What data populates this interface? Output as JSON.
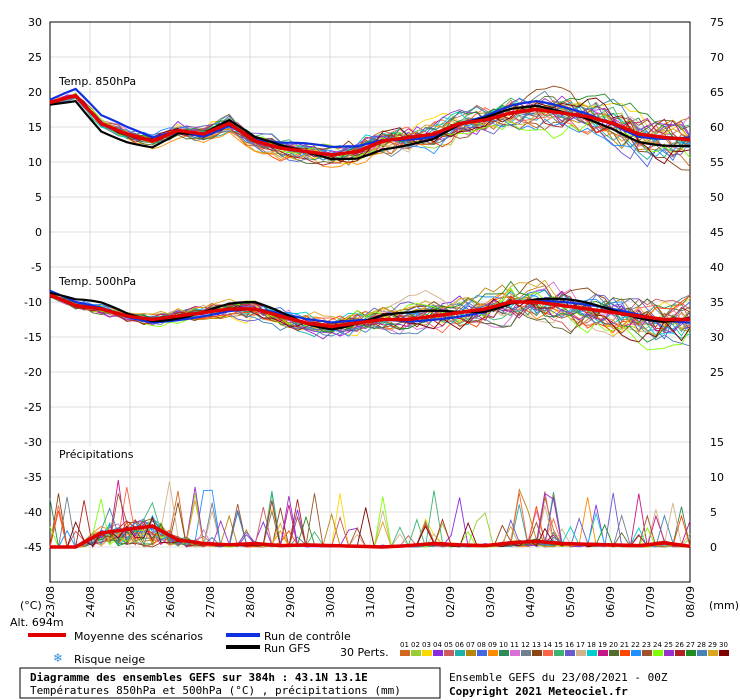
{
  "chart_data": {
    "type": "line",
    "left_axis_unit": "(°C)",
    "right_axis_unit": "(mm)",
    "left_ticks": [
      30,
      25,
      20,
      15,
      10,
      5,
      0,
      -5,
      -10,
      -15,
      -20,
      -25,
      -30,
      -35,
      -40,
      -45
    ],
    "right_ticks_top": [
      75,
      70,
      65,
      60,
      55,
      50
    ],
    "right_ticks_mid": [
      45,
      40,
      35,
      30,
      25
    ],
    "right_ticks_bottom": [
      15,
      10,
      5,
      0
    ],
    "x_labels": [
      "23/08",
      "24/08",
      "25/08",
      "26/08",
      "27/08",
      "28/08",
      "29/08",
      "30/08",
      "31/08",
      "01/09",
      "02/09",
      "03/09",
      "04/09",
      "05/09",
      "06/09",
      "07/09",
      "08/09"
    ],
    "panels": [
      {
        "label": "Temp. 850hPa",
        "ylim": [
          0,
          30
        ]
      },
      {
        "label": "Temp. 500hPa",
        "ylim": [
          -30,
          0
        ]
      },
      {
        "label": "Précipitations",
        "ylim_mm": [
          0,
          15
        ]
      }
    ],
    "grid": true,
    "mean_850": [
      18.5,
      19.5,
      15.5,
      14,
      13,
      14.5,
      14,
      15.5,
      13,
      12,
      11.5,
      11,
      11.5,
      13,
      13.5,
      14,
      15.5,
      16,
      17,
      17.5,
      17,
      16.5,
      15.5,
      14,
      13.5,
      13.2
    ],
    "mean_500": [
      -9,
      -10.5,
      -11,
      -12,
      -12.5,
      -12,
      -11.5,
      -11,
      -11,
      -12,
      -13,
      -13.5,
      -13,
      -12.5,
      -12.5,
      -12,
      -11.5,
      -11,
      -10,
      -10,
      -10.5,
      -11,
      -11.5,
      -12,
      -12.5,
      -12.5
    ],
    "mean_precip": [
      0,
      0,
      2,
      2.5,
      3,
      1,
      0.5,
      0.3,
      0.5,
      0.2,
      0.3,
      0.2,
      0.1,
      0,
      0.2,
      0.5,
      0.3,
      0.2,
      0.6,
      0.8,
      0.5,
      0.4,
      0.3,
      0.2,
      0.6,
      0.1
    ]
  },
  "left_axis_unit_label": "(°C)",
  "right_axis_unit_label": "(mm)",
  "altitude": "Alt. 694m",
  "legend": {
    "mean": "Moyenne des scénarios",
    "control": "Run de contrôle",
    "gfs": "Run GFS",
    "snow": "Risque neige",
    "perts": "30 Perts."
  },
  "pert_numbers": [
    "01",
    "02",
    "03",
    "04",
    "05",
    "06",
    "07",
    "08",
    "09",
    "10",
    "11",
    "12",
    "13",
    "14",
    "15",
    "16",
    "17",
    "18",
    "19",
    "20",
    "21",
    "22",
    "23",
    "24",
    "25",
    "26",
    "27",
    "28",
    "29",
    "30"
  ],
  "pert_colors": [
    "#d2691e",
    "#9acd32",
    "#ffd700",
    "#8a2be2",
    "#cd5c5c",
    "#20b2aa",
    "#b8860b",
    "#4169e1",
    "#ff8c00",
    "#2e8b57",
    "#da70d6",
    "#708090",
    "#8b4513",
    "#ff6347",
    "#3cb371",
    "#6a5acd",
    "#d2b48c",
    "#00ced1",
    "#c71585",
    "#556b2f",
    "#ff4500",
    "#1e90ff",
    "#a0522d",
    "#7fff00",
    "#9932cc",
    "#b22222",
    "#228b22",
    "#4682b4",
    "#daa520",
    "#800000"
  ],
  "footer": {
    "title": "Diagramme des ensembles GEFS sur 384h : 43.1N 13.1E",
    "subtitle": "Températures 850hPa et 500hPa (°C) , précipitations (mm)",
    "run": "Ensemble GEFS du 23/08/2021 - 00Z",
    "copyright": "Copyright 2021 Meteociel.fr"
  }
}
